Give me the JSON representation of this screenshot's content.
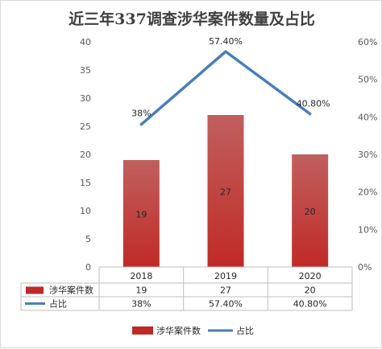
{
  "chart_data": {
    "type": "bar",
    "title": "近三年337调查涉华案件数量及占比",
    "categories": [
      "2018",
      "2019",
      "2020"
    ],
    "series": [
      {
        "name": "涉华案件数",
        "type": "bar",
        "axis": "left",
        "values": [
          19,
          27,
          20
        ],
        "labels": [
          "19",
          "27",
          "20"
        ]
      },
      {
        "name": "占比",
        "type": "line",
        "axis": "right",
        "values": [
          38,
          57.4,
          40.8
        ],
        "labels": [
          "38%",
          "57.40%",
          "40.80%"
        ]
      }
    ],
    "ylim": [
      0,
      40
    ],
    "y_ticks": [
      "0",
      "5",
      "10",
      "15",
      "20",
      "25",
      "30",
      "35",
      "40"
    ],
    "y2lim": [
      0,
      60
    ],
    "y2_ticks": [
      "0%",
      "10%",
      "20%",
      "30%",
      "40%",
      "50%",
      "60%"
    ],
    "data_table": true,
    "grid": false,
    "legend_position": "bottom",
    "colors": {
      "bar_top": "#c0605e",
      "bar_bottom": "#c02a26",
      "line": "#4a7ebb"
    }
  }
}
